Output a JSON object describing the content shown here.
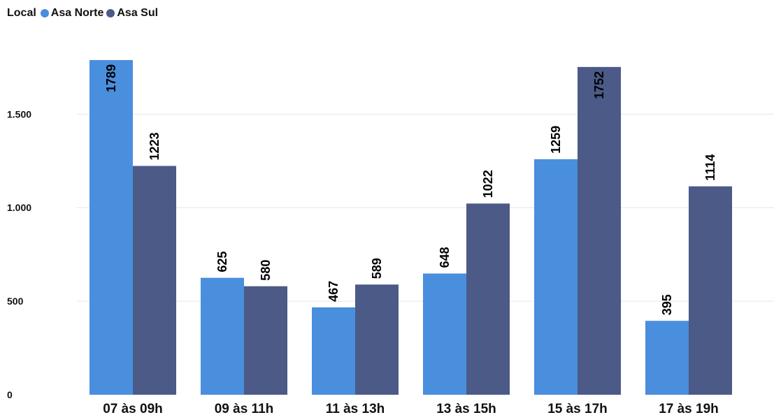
{
  "legend": {
    "title": "Local",
    "items": [
      {
        "label": "Asa Norte",
        "color": "#4a8ede"
      },
      {
        "label": "Asa Sul",
        "color": "#4b5a87"
      }
    ]
  },
  "chart_data": {
    "type": "bar",
    "categories": [
      "07 às 09h",
      "09 às 11h",
      "11 às 13h",
      "13 às 15h",
      "15 às 17h",
      "17 às 19h"
    ],
    "series": [
      {
        "name": "Asa Norte",
        "color": "#4a8ede",
        "values": [
          1789,
          625,
          467,
          648,
          1259,
          395
        ]
      },
      {
        "name": "Asa Sul",
        "color": "#4b5a87",
        "values": [
          1223,
          580,
          589,
          1022,
          1752,
          1114
        ]
      }
    ],
    "yticks": [
      0,
      500,
      1000,
      1500
    ],
    "ytick_labels": [
      "0",
      "500",
      "1.000",
      "1.500"
    ],
    "ylim": [
      0,
      1800
    ],
    "grid": true,
    "legend_position": "top-left",
    "data_labels": true
  }
}
